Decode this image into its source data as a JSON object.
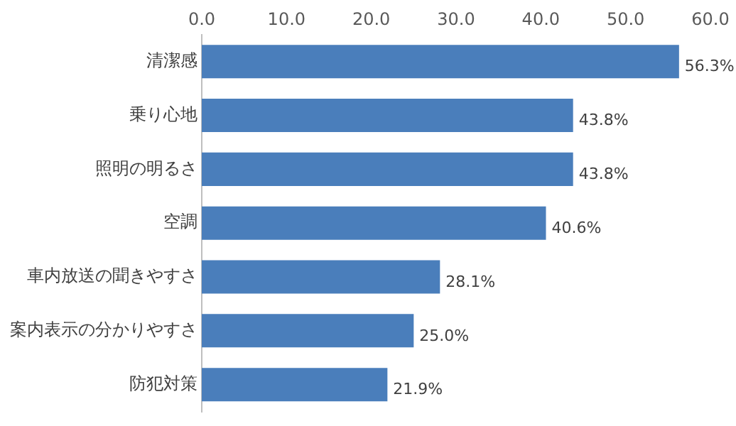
{
  "chart_data": {
    "type": "bar",
    "orientation": "horizontal",
    "categories": [
      "清潔感",
      "乗り心地",
      "照明の明るさ",
      "空調",
      "車内放送の聞きやすさ",
      "案内表示の分かりやすさ",
      "防犯対策"
    ],
    "values": [
      56.3,
      43.8,
      43.8,
      40.6,
      28.1,
      25.0,
      21.9
    ],
    "value_labels": [
      "56.3%",
      "43.8%",
      "43.8%",
      "40.6%",
      "28.1%",
      "25.0%",
      "21.9%"
    ],
    "color": "#4a7ebb",
    "xlim": [
      0,
      60
    ],
    "xticks": [
      {
        "value": 0,
        "label": "0.0"
      },
      {
        "value": 10,
        "label": "10.0"
      },
      {
        "value": 20,
        "label": "20.0"
      },
      {
        "value": 30,
        "label": "30.0"
      },
      {
        "value": 40,
        "label": "40.0"
      },
      {
        "value": 50,
        "label": "50.0"
      },
      {
        "value": 60,
        "label": "60.0"
      }
    ],
    "grid": false,
    "legend": false
  }
}
